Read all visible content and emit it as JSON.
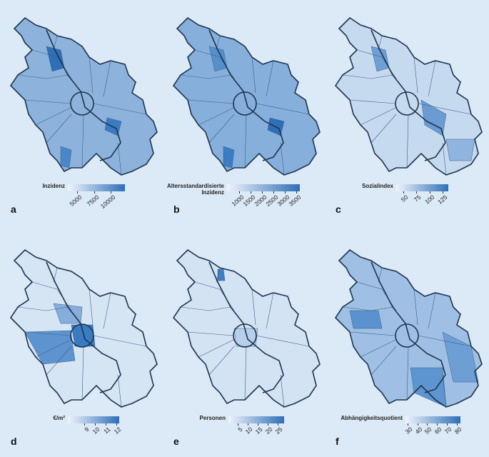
{
  "panels": [
    {
      "letter": "a",
      "legend": {
        "title": "Inzidenz",
        "range": [
          3600,
          12100
        ],
        "ticks": [
          5000,
          7500,
          10000
        ]
      }
    },
    {
      "letter": "b",
      "legend": {
        "title": "Altersstandardisierte Inzidenz",
        "range": [
          470,
          3650
        ],
        "ticks": [
          1000,
          1500,
          2000,
          2500,
          3000,
          3500
        ]
      }
    },
    {
      "letter": "c",
      "legend": {
        "title": "Sozialindex",
        "range": [
          36,
          136
        ],
        "ticks": [
          50,
          75,
          100,
          125
        ]
      }
    },
    {
      "letter": "d",
      "legend": {
        "title": "€/m²",
        "range": [
          7.5,
          12.3
        ],
        "ticks": [
          9,
          10,
          11,
          12
        ]
      }
    },
    {
      "letter": "e",
      "legend": {
        "title": "Personen",
        "range": [
          0.4,
          28.2
        ],
        "ticks": [
          5,
          10,
          15,
          20,
          25
        ]
      }
    },
    {
      "letter": "f",
      "legend": {
        "title": "Abhängigkeitsquotient",
        "range": [
          28,
          84
        ],
        "ticks": [
          30,
          40,
          50,
          60,
          70,
          80
        ]
      }
    }
  ]
}
